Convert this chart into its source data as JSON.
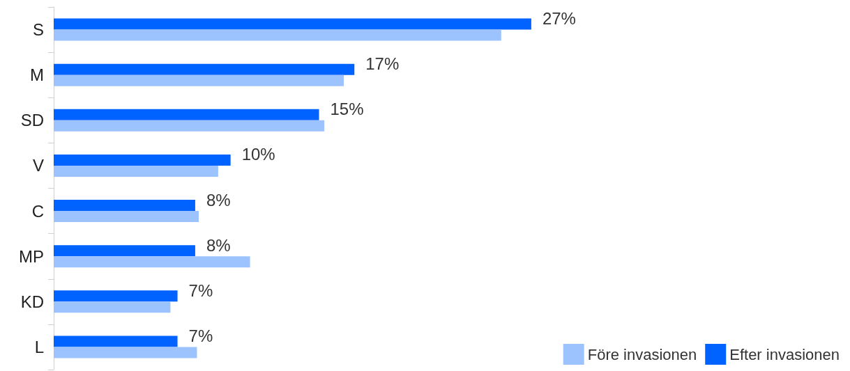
{
  "chart_data": {
    "type": "bar",
    "orientation": "horizontal",
    "categories": [
      "S",
      "M",
      "SD",
      "V",
      "C",
      "MP",
      "KD",
      "L"
    ],
    "series": [
      {
        "name": "Före invasionen",
        "color": "#9dc3ff",
        "values": [
          25.3,
          16.4,
          15.3,
          9.3,
          8.2,
          11.1,
          6.6,
          8.1
        ]
      },
      {
        "name": "Efter invasionen",
        "color": "#0062ff",
        "values": [
          27,
          17,
          15,
          10,
          8,
          8,
          7,
          7
        ],
        "value_labels": [
          "27%",
          "17%",
          "15%",
          "10%",
          "8%",
          "8%",
          "7%",
          "7%"
        ]
      }
    ],
    "tick_labels": "y",
    "grid": false,
    "legend": "bottom right"
  }
}
